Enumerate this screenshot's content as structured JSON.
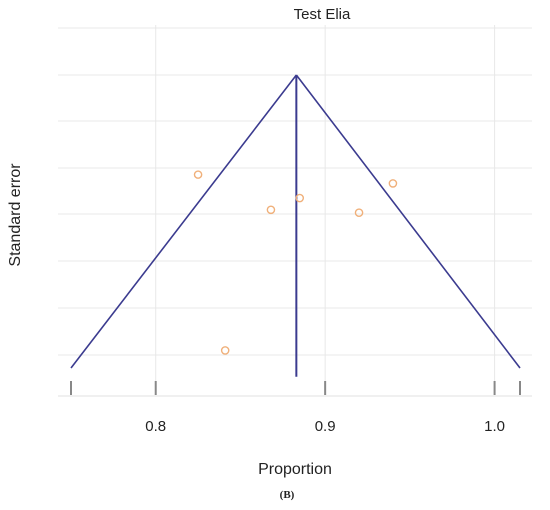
{
  "chart_data": {
    "type": "scatter",
    "title": "Test Elia",
    "xlabel": "Proportion",
    "ylabel": "Standard error",
    "caption": "(B)",
    "xlim": [
      0.75,
      1.015
    ],
    "x_ticks": [
      {
        "value": 0.8,
        "label": "0.8"
      },
      {
        "value": 0.9,
        "label": "0.9"
      },
      {
        "value": 1.0,
        "label": "1.0"
      }
    ],
    "y_reversed": true,
    "y_tick_labels_shown": false,
    "grid": true,
    "pooled_estimate": 0.883,
    "funnel": {
      "apex": [
        0.883,
        0.0
      ],
      "left_base": [
        0.75,
        1.0
      ],
      "right_base": [
        1.015,
        1.0
      ],
      "vertical_line_bottom": 1.03
    },
    "points": [
      {
        "x": 0.825,
        "y": 0.34
      },
      {
        "x": 0.868,
        "y": 0.46
      },
      {
        "x": 0.885,
        "y": 0.42
      },
      {
        "x": 0.92,
        "y": 0.47
      },
      {
        "x": 0.94,
        "y": 0.37
      },
      {
        "x": 0.841,
        "y": 0.94
      }
    ],
    "colors": {
      "funnel": "#3b3b8f",
      "points": "#f0b07a",
      "grid": "#e8e8e8",
      "axis": "#888888"
    }
  }
}
